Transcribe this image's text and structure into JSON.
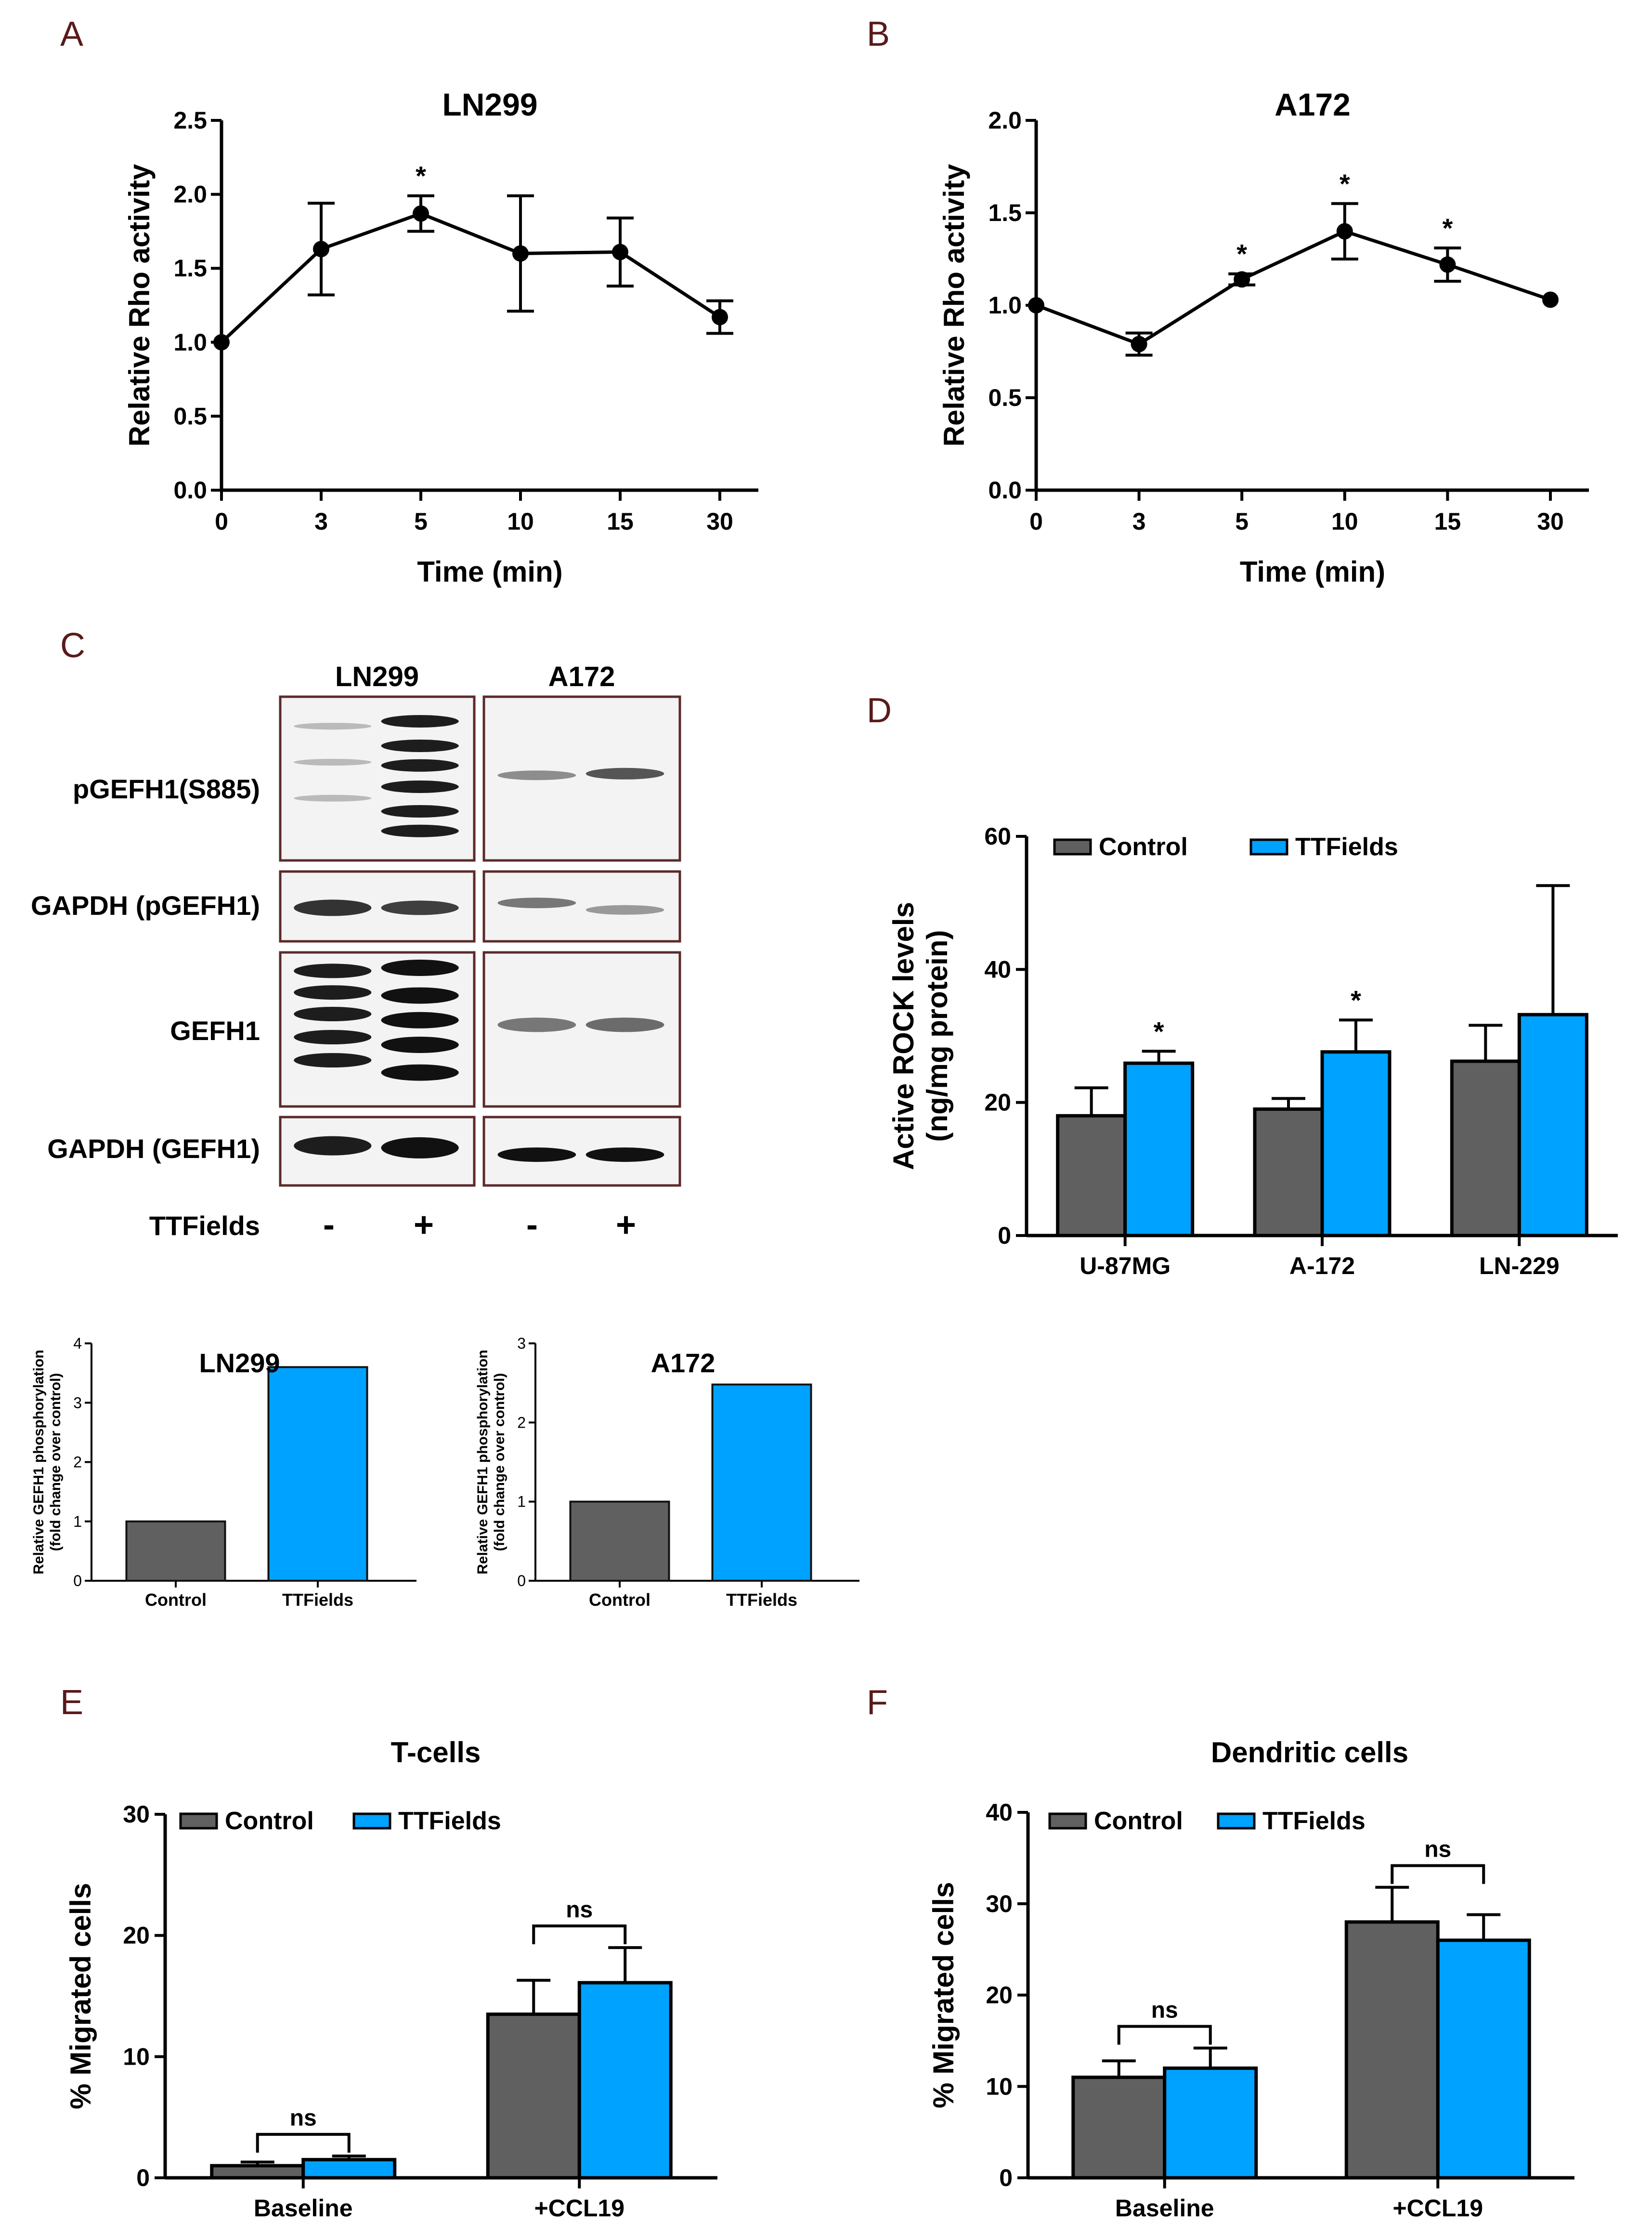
{
  "panels": {
    "A": "A",
    "B": "B",
    "C": "C",
    "D": "D",
    "E": "E",
    "F": "F"
  },
  "colors": {
    "control": "#606060",
    "ttfields": "#00a2ff",
    "panel_letter": "#5a1a1a",
    "blot_border": "#5c2a2a",
    "axis": "#000000"
  },
  "blot": {
    "cell_lines": [
      "LN299",
      "A172"
    ],
    "row_labels": [
      "pGEFH1(S885)",
      "GAPDH (pGEFH1)",
      "GEFH1",
      "GAPDH (GEFH1)"
    ],
    "treatment_label": "TTFields",
    "lane_signs": [
      "-",
      "+",
      "-",
      "+"
    ]
  },
  "chart_data": [
    {
      "id": "A",
      "type": "line",
      "title": "LN299",
      "xlabel": "Time (min)",
      "ylabel": "Relative Rho activity",
      "x": [
        "0",
        "3",
        "5",
        "10",
        "15",
        "30"
      ],
      "y": [
        1.0,
        1.63,
        1.87,
        1.6,
        1.61,
        1.17
      ],
      "err": [
        0,
        0.31,
        0.12,
        0.39,
        0.23,
        0.11
      ],
      "sig": [
        "",
        "",
        "*",
        "",
        "",
        ""
      ],
      "ylim": [
        0,
        2.5
      ],
      "yticks": [
        "0.0",
        "0.5",
        "1.0",
        "1.5",
        "2.0",
        "2.5"
      ]
    },
    {
      "id": "B",
      "type": "line",
      "title": "A172",
      "xlabel": "Time (min)",
      "ylabel": "Relative Rho activity",
      "x": [
        "0",
        "3",
        "5",
        "10",
        "15",
        "30"
      ],
      "y": [
        1.0,
        0.79,
        1.14,
        1.4,
        1.22,
        1.03
      ],
      "err": [
        0,
        0.06,
        0.03,
        0.15,
        0.09,
        0
      ],
      "sig": [
        "",
        "",
        "*",
        "*",
        "*",
        ""
      ],
      "ylim": [
        0,
        2.0
      ],
      "yticks": [
        "0.0",
        "0.5",
        "1.0",
        "1.5",
        "2.0"
      ]
    },
    {
      "id": "C1",
      "type": "bar",
      "title": "LN299",
      "ylabel_line1": "Relative GEFH1 phosphorylation",
      "ylabel_line2": "(fold change over control)",
      "categories": [
        "Control",
        "TTFields"
      ],
      "values": [
        1.0,
        3.6
      ],
      "ylim": [
        0,
        4
      ],
      "yticks": [
        "0",
        "1",
        "2",
        "3",
        "4"
      ]
    },
    {
      "id": "C2",
      "type": "bar",
      "title": "A172",
      "ylabel_line1": "Relative GEFH1 phosphorylation",
      "ylabel_line2": "(fold change over control)",
      "categories": [
        "Control",
        "TTFields"
      ],
      "values": [
        1.0,
        2.48
      ],
      "ylim": [
        0,
        3
      ],
      "yticks": [
        "0",
        "1",
        "2",
        "3"
      ]
    },
    {
      "id": "D",
      "type": "bar",
      "title": "",
      "ylabel_line1": "Active ROCK levels",
      "ylabel_line2": "(ng/mg protein)",
      "categories": [
        "U-87MG",
        "A-172",
        "LN-229"
      ],
      "series": [
        {
          "name": "Control",
          "values": [
            18.0,
            19.0,
            26.2
          ],
          "err": [
            4.2,
            1.6,
            5.4
          ],
          "sig": [
            "",
            "",
            ""
          ]
        },
        {
          "name": "TTFields",
          "values": [
            25.9,
            27.6,
            33.2
          ],
          "err": [
            1.8,
            4.8,
            19.4
          ],
          "sig": [
            "*",
            "*",
            ""
          ]
        }
      ],
      "ylim": [
        0,
        60
      ],
      "yticks": [
        "0",
        "20",
        "40",
        "60"
      ],
      "legend": "top"
    },
    {
      "id": "E",
      "type": "bar",
      "title": "T-cells",
      "ylabel": "% Migrated cells",
      "categories": [
        "Baseline",
        "+CCL19"
      ],
      "series": [
        {
          "name": "Control",
          "values": [
            1.0,
            13.5
          ],
          "err": [
            0.3,
            2.8
          ]
        },
        {
          "name": "TTFields",
          "values": [
            1.5,
            16.1
          ],
          "err": [
            0.3,
            2.9
          ]
        }
      ],
      "comparisons": [
        "ns",
        "ns"
      ],
      "ylim": [
        0,
        30
      ],
      "yticks": [
        "0",
        "10",
        "20",
        "30"
      ],
      "legend": "top"
    },
    {
      "id": "F",
      "type": "bar",
      "title": "Dendritic cells",
      "ylabel": "% Migrated cells",
      "categories": [
        "Baseline",
        "+CCL19"
      ],
      "series": [
        {
          "name": "Control",
          "values": [
            11.0,
            28.0
          ],
          "err": [
            1.8,
            3.8
          ]
        },
        {
          "name": "TTFields",
          "values": [
            12.0,
            26.0
          ],
          "err": [
            2.2,
            2.8
          ]
        }
      ],
      "comparisons": [
        "ns",
        "ns"
      ],
      "ylim": [
        0,
        40
      ],
      "yticks": [
        "0",
        "10",
        "20",
        "30",
        "40"
      ],
      "legend": "top"
    }
  ]
}
